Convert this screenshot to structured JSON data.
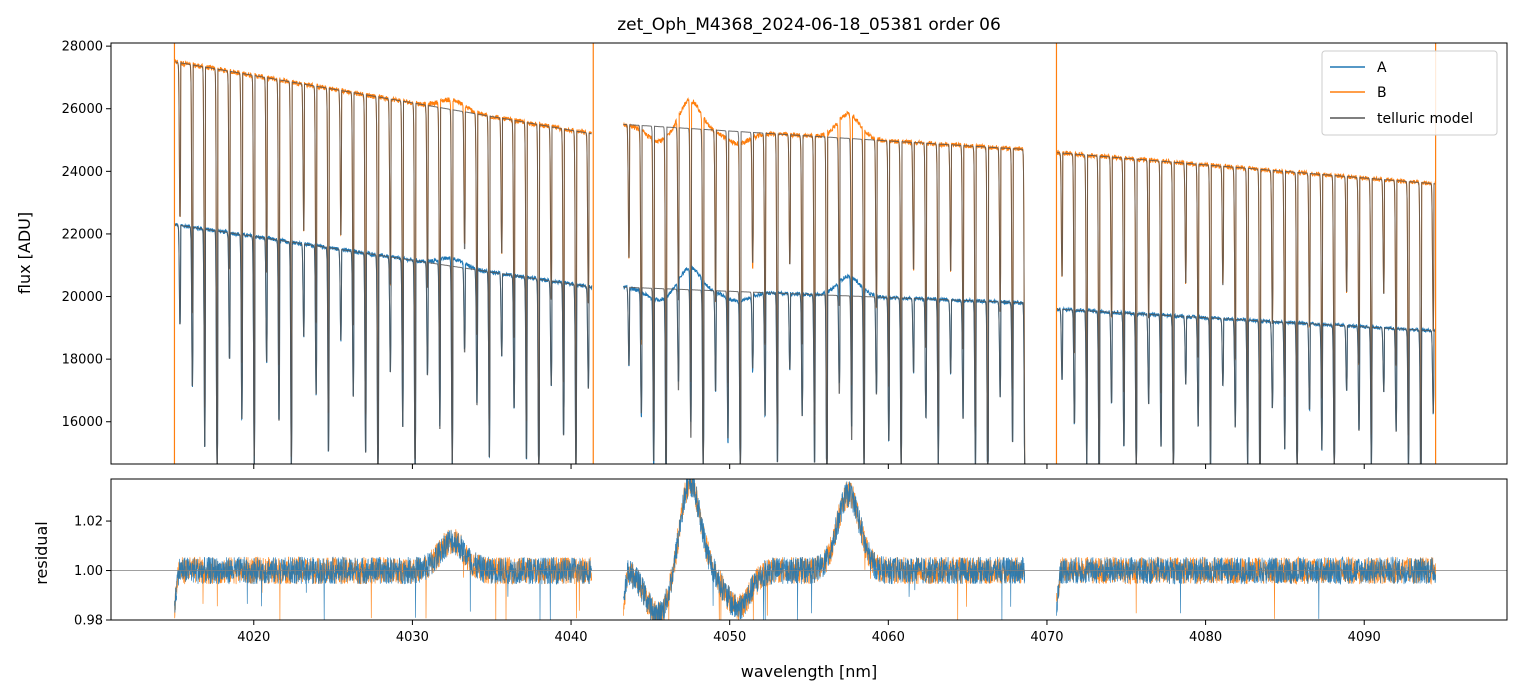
{
  "chart_data": [
    {
      "type": "line",
      "title": "zet_Oph_M4368_2024-06-18_05381  order 06",
      "xlabel": "wavelength [nm]",
      "ylabel": "flux [ADU]",
      "xlim": [
        4011,
        4099
      ],
      "ylim": [
        14650,
        28100
      ],
      "xticks": [
        4020,
        4030,
        4040,
        4050,
        4060,
        4070,
        4080,
        4090
      ],
      "yticks": [
        16000,
        18000,
        20000,
        22000,
        24000,
        26000,
        28000
      ],
      "ytick_labels": [
        "16000",
        "18000",
        "20000",
        "22000",
        "24000",
        "26000",
        "28000"
      ],
      "legend": {
        "position": "top-right",
        "entries": [
          {
            "label": "A",
            "color": "#1f77b4"
          },
          {
            "label": "B",
            "color": "#ff7f0e"
          },
          {
            "label": "telluric model",
            "color": "#555555"
          }
        ]
      },
      "segments": [
        {
          "x": [
            4015.0,
            4041.3
          ],
          "A_level": [
            22300,
            20300
          ],
          "B_level": [
            27500,
            25200
          ]
        },
        {
          "x": [
            4043.3,
            4068.6
          ],
          "A_level": [
            20300,
            19800
          ],
          "B_level": [
            25500,
            24700
          ]
        },
        {
          "x": [
            4070.6,
            4094.5
          ],
          "A_level": [
            19600,
            18900
          ],
          "B_level": [
            24600,
            23600
          ]
        }
      ],
      "series": [
        {
          "name": "A",
          "color": "#1f77b4",
          "continuum_range": [
            18900,
            22300
          ],
          "min_flux": 14650
        },
        {
          "name": "B",
          "color": "#ff7f0e",
          "continuum_range": [
            23600,
            27600
          ],
          "min_flux": 14650
        },
        {
          "name": "telluric model",
          "color": "#555555"
        }
      ],
      "absorption_line_spacing_nm": 0.78,
      "edge_spikes_x": [
        4015.0,
        4041.4,
        4070.6,
        4094.5
      ]
    },
    {
      "type": "line",
      "xlabel": "wavelength [nm]",
      "ylabel": "residual",
      "xlim": [
        4011,
        4099
      ],
      "ylim": [
        0.98,
        1.037
      ],
      "yticks": [
        0.98,
        1.0,
        1.02
      ],
      "ytick_labels": [
        "0.98",
        "1.00",
        "1.02"
      ],
      "xticks": [
        4020,
        4030,
        4040,
        4050,
        4060,
        4070,
        4080,
        4090
      ],
      "xtick_labels": [
        "4020",
        "4030",
        "4040",
        "4050",
        "4060",
        "4070",
        "4080",
        "4090"
      ],
      "reference_line": 1.0,
      "series": [
        {
          "name": "A",
          "color": "#1f77b4"
        },
        {
          "name": "B",
          "color": "#ff7f0e"
        }
      ],
      "features": [
        {
          "x": 4032.5,
          "peak": 1.012
        },
        {
          "x": 4045.5,
          "peak": 0.982
        },
        {
          "x": 4047.5,
          "peak": 1.036
        },
        {
          "x": 4050.5,
          "peak": 0.985
        },
        {
          "x": 4057.5,
          "peak": 1.031
        }
      ]
    }
  ]
}
